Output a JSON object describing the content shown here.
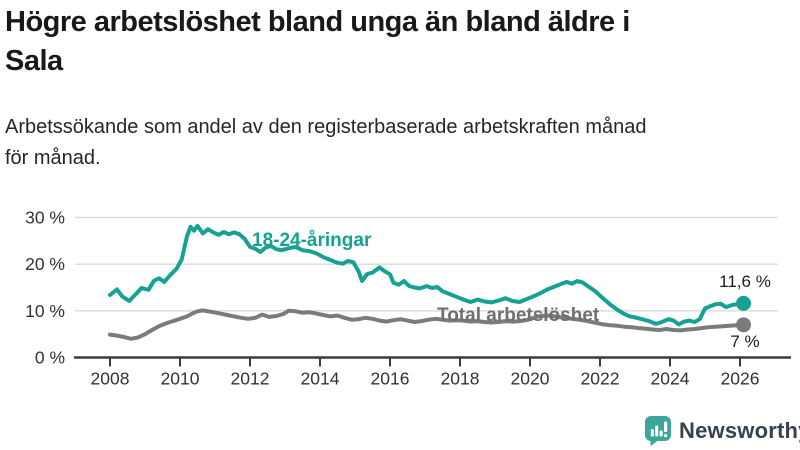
{
  "header": {
    "title": "Högre arbetslöshet bland unga än bland äldre i\nSala",
    "subtitle": "Arbetssökande som andel av den registerbaserade arbetskraften månad\nför månad."
  },
  "branding": {
    "name": "Newsworthy",
    "icon": "newsworthy-chart-bubble-icon",
    "icon_color": "#3da59a",
    "wordmark_color": "#37424c"
  },
  "chart_data": {
    "type": "line",
    "title": "Högre arbetslöshet bland unga än bland äldre i Sala",
    "subtitle": "Arbetssökande som andel av den registerbaserade arbetskraften månad för månad.",
    "unit": "%",
    "grid": "horizontal-only",
    "legend_position": "inline-labels",
    "xlim": [
      2007.0,
      2026.9
    ],
    "ylim": [
      0,
      30
    ],
    "x_ticks": [
      2008,
      2010,
      2012,
      2014,
      2016,
      2018,
      2020,
      2022,
      2024,
      2026
    ],
    "y_ticks": [
      {
        "value": 0,
        "label": "0 %"
      },
      {
        "value": 10,
        "label": "10 %"
      },
      {
        "value": 20,
        "label": "20 %"
      },
      {
        "value": 30,
        "label": "30 %"
      }
    ],
    "colors": {
      "gridline": "#d9d9d9",
      "axis": "#3c3c3c",
      "tick_text": "#333333"
    },
    "series": [
      {
        "name": "18-24-åringar",
        "color": "#16a195",
        "end_label": "11,6 %",
        "end_value": 11.6,
        "points": [
          [
            2008.0,
            13.4
          ],
          [
            2008.2,
            14.6
          ],
          [
            2008.35,
            13.1
          ],
          [
            2008.55,
            12.1
          ],
          [
            2008.75,
            13.7
          ],
          [
            2008.9,
            14.9
          ],
          [
            2009.1,
            14.5
          ],
          [
            2009.25,
            16.4
          ],
          [
            2009.4,
            17.0
          ],
          [
            2009.55,
            16.2
          ],
          [
            2009.7,
            17.5
          ],
          [
            2009.9,
            19.0
          ],
          [
            2010.05,
            21.0
          ],
          [
            2010.2,
            26.0
          ],
          [
            2010.3,
            28.0
          ],
          [
            2010.4,
            27.2
          ],
          [
            2010.5,
            28.2
          ],
          [
            2010.65,
            26.6
          ],
          [
            2010.8,
            27.5
          ],
          [
            2010.95,
            26.8
          ],
          [
            2011.1,
            26.3
          ],
          [
            2011.25,
            26.9
          ],
          [
            2011.4,
            26.4
          ],
          [
            2011.55,
            26.8
          ],
          [
            2011.7,
            26.4
          ],
          [
            2011.85,
            25.4
          ],
          [
            2012.0,
            23.7
          ],
          [
            2012.15,
            23.3
          ],
          [
            2012.3,
            22.6
          ],
          [
            2012.45,
            23.6
          ],
          [
            2012.6,
            23.9
          ],
          [
            2012.75,
            23.2
          ],
          [
            2012.9,
            23.0
          ],
          [
            2013.1,
            23.4
          ],
          [
            2013.3,
            23.7
          ],
          [
            2013.5,
            23.0
          ],
          [
            2013.7,
            22.8
          ],
          [
            2013.9,
            22.3
          ],
          [
            2014.1,
            21.5
          ],
          [
            2014.3,
            20.9
          ],
          [
            2014.5,
            20.3
          ],
          [
            2014.65,
            20.1
          ],
          [
            2014.8,
            20.7
          ],
          [
            2014.95,
            20.4
          ],
          [
            2015.1,
            18.5
          ],
          [
            2015.2,
            16.4
          ],
          [
            2015.35,
            17.9
          ],
          [
            2015.5,
            18.2
          ],
          [
            2015.7,
            19.3
          ],
          [
            2015.85,
            18.5
          ],
          [
            2016.0,
            17.8
          ],
          [
            2016.1,
            16.0
          ],
          [
            2016.25,
            15.6
          ],
          [
            2016.4,
            16.4
          ],
          [
            2016.55,
            15.3
          ],
          [
            2016.7,
            15.0
          ],
          [
            2016.85,
            14.8
          ],
          [
            2017.05,
            15.3
          ],
          [
            2017.2,
            14.9
          ],
          [
            2017.35,
            15.1
          ],
          [
            2017.5,
            14.2
          ],
          [
            2017.7,
            13.6
          ],
          [
            2017.9,
            13.0
          ],
          [
            2018.1,
            12.4
          ],
          [
            2018.3,
            11.9
          ],
          [
            2018.5,
            12.4
          ],
          [
            2018.7,
            12.0
          ],
          [
            2018.9,
            11.8
          ],
          [
            2019.1,
            12.2
          ],
          [
            2019.3,
            12.7
          ],
          [
            2019.5,
            12.1
          ],
          [
            2019.7,
            11.9
          ],
          [
            2019.9,
            12.5
          ],
          [
            2020.1,
            13.1
          ],
          [
            2020.3,
            13.8
          ],
          [
            2020.5,
            14.6
          ],
          [
            2020.7,
            15.2
          ],
          [
            2020.9,
            15.8
          ],
          [
            2021.05,
            16.2
          ],
          [
            2021.2,
            15.8
          ],
          [
            2021.35,
            16.4
          ],
          [
            2021.5,
            16.1
          ],
          [
            2021.65,
            15.3
          ],
          [
            2021.85,
            14.3
          ],
          [
            2022.1,
            12.6
          ],
          [
            2022.3,
            11.3
          ],
          [
            2022.5,
            10.2
          ],
          [
            2022.7,
            9.3
          ],
          [
            2022.85,
            8.8
          ],
          [
            2023.0,
            8.6
          ],
          [
            2023.2,
            8.2
          ],
          [
            2023.4,
            7.8
          ],
          [
            2023.6,
            7.2
          ],
          [
            2023.8,
            7.7
          ],
          [
            2023.95,
            8.2
          ],
          [
            2024.1,
            7.9
          ],
          [
            2024.25,
            7.1
          ],
          [
            2024.4,
            7.7
          ],
          [
            2024.55,
            7.9
          ],
          [
            2024.7,
            7.6
          ],
          [
            2024.85,
            8.2
          ],
          [
            2025.0,
            10.5
          ],
          [
            2025.15,
            11.0
          ],
          [
            2025.3,
            11.4
          ],
          [
            2025.45,
            11.5
          ],
          [
            2025.6,
            10.8
          ],
          [
            2025.75,
            11.2
          ],
          [
            2025.9,
            11.4
          ],
          [
            2026.1,
            11.6
          ]
        ]
      },
      {
        "name": "Total arbetslöshet",
        "color": "#7b7b7b",
        "end_label": "7 %",
        "end_value": 7.0,
        "points": [
          [
            2008.0,
            4.9
          ],
          [
            2008.2,
            4.7
          ],
          [
            2008.4,
            4.4
          ],
          [
            2008.6,
            4.0
          ],
          [
            2008.8,
            4.3
          ],
          [
            2009.0,
            5.0
          ],
          [
            2009.2,
            5.9
          ],
          [
            2009.4,
            6.7
          ],
          [
            2009.6,
            7.3
          ],
          [
            2009.8,
            7.8
          ],
          [
            2010.0,
            8.3
          ],
          [
            2010.2,
            8.8
          ],
          [
            2010.35,
            9.4
          ],
          [
            2010.5,
            9.9
          ],
          [
            2010.65,
            10.1
          ],
          [
            2010.8,
            9.9
          ],
          [
            2010.95,
            9.7
          ],
          [
            2011.15,
            9.4
          ],
          [
            2011.35,
            9.1
          ],
          [
            2011.55,
            8.8
          ],
          [
            2011.75,
            8.5
          ],
          [
            2011.95,
            8.3
          ],
          [
            2012.15,
            8.5
          ],
          [
            2012.35,
            9.2
          ],
          [
            2012.55,
            8.7
          ],
          [
            2012.75,
            8.9
          ],
          [
            2012.95,
            9.3
          ],
          [
            2013.1,
            10.0
          ],
          [
            2013.3,
            9.9
          ],
          [
            2013.5,
            9.6
          ],
          [
            2013.7,
            9.7
          ],
          [
            2013.9,
            9.4
          ],
          [
            2014.1,
            9.1
          ],
          [
            2014.3,
            8.8
          ],
          [
            2014.5,
            9.0
          ],
          [
            2014.7,
            8.5
          ],
          [
            2014.9,
            8.1
          ],
          [
            2015.1,
            8.2
          ],
          [
            2015.3,
            8.5
          ],
          [
            2015.5,
            8.3
          ],
          [
            2015.7,
            7.9
          ],
          [
            2015.9,
            7.7
          ],
          [
            2016.1,
            8.0
          ],
          [
            2016.3,
            8.2
          ],
          [
            2016.5,
            7.9
          ],
          [
            2016.7,
            7.6
          ],
          [
            2016.9,
            7.8
          ],
          [
            2017.1,
            8.1
          ],
          [
            2017.3,
            8.3
          ],
          [
            2017.5,
            8.1
          ],
          [
            2017.7,
            7.9
          ],
          [
            2017.9,
            8.0
          ],
          [
            2018.1,
            7.9
          ],
          [
            2018.3,
            7.7
          ],
          [
            2018.5,
            7.8
          ],
          [
            2018.7,
            7.6
          ],
          [
            2018.9,
            7.5
          ],
          [
            2019.1,
            7.6
          ],
          [
            2019.3,
            7.8
          ],
          [
            2019.5,
            7.7
          ],
          [
            2019.7,
            7.8
          ],
          [
            2019.9,
            8.0
          ],
          [
            2020.1,
            8.5
          ],
          [
            2020.3,
            8.9
          ],
          [
            2020.5,
            9.0
          ],
          [
            2020.7,
            8.8
          ],
          [
            2020.9,
            8.6
          ],
          [
            2021.1,
            8.4
          ],
          [
            2021.3,
            8.2
          ],
          [
            2021.5,
            8.0
          ],
          [
            2021.7,
            7.7
          ],
          [
            2021.9,
            7.4
          ],
          [
            2022.1,
            7.1
          ],
          [
            2022.3,
            6.9
          ],
          [
            2022.5,
            6.8
          ],
          [
            2022.7,
            6.6
          ],
          [
            2022.9,
            6.5
          ],
          [
            2023.1,
            6.3
          ],
          [
            2023.3,
            6.2
          ],
          [
            2023.5,
            6.0
          ],
          [
            2023.7,
            5.9
          ],
          [
            2023.9,
            6.1
          ],
          [
            2024.1,
            5.9
          ],
          [
            2024.3,
            5.8
          ],
          [
            2024.5,
            6.0
          ],
          [
            2024.7,
            6.1
          ],
          [
            2024.9,
            6.3
          ],
          [
            2025.1,
            6.5
          ],
          [
            2025.3,
            6.6
          ],
          [
            2025.5,
            6.7
          ],
          [
            2025.7,
            6.8
          ],
          [
            2025.9,
            6.9
          ],
          [
            2026.1,
            7.0
          ]
        ]
      }
    ]
  }
}
